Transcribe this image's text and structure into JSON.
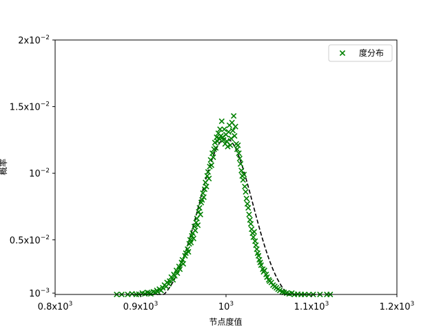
{
  "chart_data": {
    "type": "scatter",
    "xlabel": "节点度值",
    "ylabel": "概率",
    "xlim": [
      800,
      1200
    ],
    "ylim": [
      0.0009,
      0.02
    ],
    "grid": false,
    "legend": {
      "placement": "top-right",
      "entries": [
        "度分布"
      ]
    },
    "x_ticks": [
      {
        "value": 800,
        "mantissa": "0.8x10",
        "exp": "3"
      },
      {
        "value": 900,
        "mantissa": "0.9x10",
        "exp": "3"
      },
      {
        "value": 1000,
        "mantissa": "10",
        "exp": "3"
      },
      {
        "value": 1100,
        "mantissa": "1.1x10",
        "exp": "3"
      },
      {
        "value": 1200,
        "mantissa": "1.2x10",
        "exp": "3"
      }
    ],
    "y_ticks": [
      {
        "value": 0.001,
        "mantissa": "10",
        "exp": "−3"
      },
      {
        "value": 0.005,
        "mantissa": "0.5x10",
        "exp": "−2"
      },
      {
        "value": 0.01,
        "mantissa": "10",
        "exp": "−2"
      },
      {
        "value": 0.015,
        "mantissa": "1.5x10",
        "exp": "−2"
      },
      {
        "value": 0.02,
        "mantissa": "2x10",
        "exp": "−2"
      }
    ],
    "series": [
      {
        "name": "度分布",
        "marker": "x",
        "color": "#008000",
        "points": [
          [
            872,
            0.0009
          ],
          [
            878,
            0.00085
          ],
          [
            885,
            0.0009
          ],
          [
            890,
            0.00095
          ],
          [
            895,
            0.0009
          ],
          [
            898,
            0.00092
          ],
          [
            902,
            0.001
          ],
          [
            905,
            0.00095
          ],
          [
            908,
            0.00105
          ],
          [
            910,
            0.001
          ],
          [
            912,
            0.00095
          ],
          [
            915,
            0.0011
          ],
          [
            917,
            0.00105
          ],
          [
            919,
            0.0012
          ],
          [
            920,
            0.0011
          ],
          [
            922,
            0.0013
          ],
          [
            924,
            0.0012
          ],
          [
            926,
            0.0014
          ],
          [
            928,
            0.0016
          ],
          [
            930,
            0.0015
          ],
          [
            931,
            0.0018
          ],
          [
            933,
            0.0017
          ],
          [
            934,
            0.0019
          ],
          [
            936,
            0.0022
          ],
          [
            938,
            0.002
          ],
          [
            939,
            0.0024
          ],
          [
            940,
            0.0023
          ],
          [
            942,
            0.0027
          ],
          [
            943,
            0.0025
          ],
          [
            945,
            0.003
          ],
          [
            946,
            0.0028
          ],
          [
            948,
            0.0033
          ],
          [
            949,
            0.0035
          ],
          [
            950,
            0.0032
          ],
          [
            952,
            0.0038
          ],
          [
            953,
            0.004
          ],
          [
            955,
            0.0043
          ],
          [
            956,
            0.0041
          ],
          [
            957,
            0.0047
          ],
          [
            958,
            0.005
          ],
          [
            959,
            0.0048
          ],
          [
            960,
            0.0053
          ],
          [
            961,
            0.0055
          ],
          [
            962,
            0.0051
          ],
          [
            963,
            0.006
          ],
          [
            964,
            0.0057
          ],
          [
            965,
            0.0063
          ],
          [
            966,
            0.0066
          ],
          [
            967,
            0.0061
          ],
          [
            968,
            0.0071
          ],
          [
            969,
            0.0074
          ],
          [
            970,
            0.0069
          ],
          [
            971,
            0.0078
          ],
          [
            972,
            0.008
          ],
          [
            973,
            0.0085
          ],
          [
            974,
            0.0082
          ],
          [
            975,
            0.0088
          ],
          [
            976,
            0.0093
          ],
          [
            977,
            0.009
          ],
          [
            978,
            0.0098
          ],
          [
            979,
            0.0101
          ],
          [
            980,
            0.0096
          ],
          [
            981,
            0.0105
          ],
          [
            982,
            0.011
          ],
          [
            983,
            0.0106
          ],
          [
            984,
            0.0115
          ],
          [
            985,
            0.0112
          ],
          [
            986,
            0.0118
          ],
          [
            987,
            0.0123
          ],
          [
            988,
            0.0119
          ],
          [
            989,
            0.0127
          ],
          [
            990,
            0.0124
          ],
          [
            991,
            0.013
          ],
          [
            992,
            0.0126
          ],
          [
            993,
            0.0133
          ],
          [
            994,
            0.0128
          ],
          [
            995,
            0.0139
          ],
          [
            996,
            0.0127
          ],
          [
            997,
            0.0125
          ],
          [
            998,
            0.0133
          ],
          [
            999,
            0.0122
          ],
          [
            1000,
            0.0129
          ],
          [
            1001,
            0.0124
          ],
          [
            1002,
            0.012
          ],
          [
            1003,
            0.0131
          ],
          [
            1004,
            0.0136
          ],
          [
            1005,
            0.0121
          ],
          [
            1006,
            0.0126
          ],
          [
            1007,
            0.0138
          ],
          [
            1008,
            0.0132
          ],
          [
            1009,
            0.0143
          ],
          [
            1010,
            0.0128
          ],
          [
            1011,
            0.0135
          ],
          [
            1012,
            0.0122
          ],
          [
            1013,
            0.0118
          ],
          [
            1014,
            0.0121
          ],
          [
            1015,
            0.0115
          ],
          [
            1016,
            0.0111
          ],
          [
            1017,
            0.0107
          ],
          [
            1018,
            0.0102
          ],
          [
            1019,
            0.0098
          ],
          [
            1020,
            0.0095
          ],
          [
            1021,
            0.0099
          ],
          [
            1022,
            0.009
          ],
          [
            1023,
            0.0086
          ],
          [
            1024,
            0.0081
          ],
          [
            1025,
            0.0077
          ],
          [
            1026,
            0.0074
          ],
          [
            1027,
            0.0069
          ],
          [
            1028,
            0.0065
          ],
          [
            1029,
            0.0062
          ],
          [
            1030,
            0.0058
          ],
          [
            1031,
            0.0055
          ],
          [
            1032,
            0.0052
          ],
          [
            1033,
            0.0056
          ],
          [
            1034,
            0.0049
          ],
          [
            1035,
            0.0046
          ],
          [
            1036,
            0.0043
          ],
          [
            1037,
            0.004
          ],
          [
            1038,
            0.0038
          ],
          [
            1039,
            0.0035
          ],
          [
            1040,
            0.0033
          ],
          [
            1041,
            0.0031
          ],
          [
            1043,
            0.0028
          ],
          [
            1044,
            0.0026
          ],
          [
            1045,
            0.0027
          ],
          [
            1047,
            0.0024
          ],
          [
            1048,
            0.0022
          ],
          [
            1050,
            0.002
          ],
          [
            1051,
            0.0019
          ],
          [
            1053,
            0.0018
          ],
          [
            1055,
            0.0016
          ],
          [
            1057,
            0.0015
          ],
          [
            1059,
            0.0014
          ],
          [
            1061,
            0.0013
          ],
          [
            1063,
            0.0012
          ],
          [
            1066,
            0.0011
          ],
          [
            1068,
            0.00105
          ],
          [
            1071,
            0.001
          ],
          [
            1074,
            0.00095
          ],
          [
            1077,
            0.001
          ],
          [
            1080,
            0.0009
          ],
          [
            1084,
            0.00092
          ],
          [
            1088,
            0.0009
          ],
          [
            1092,
            0.00088
          ],
          [
            1097,
            0.0009
          ],
          [
            1102,
            0.00087
          ],
          [
            1110,
            0.0009
          ],
          [
            1118,
            0.00088
          ],
          [
            1122,
            0.0009
          ]
        ]
      },
      {
        "name": "",
        "style": "dashed-line",
        "color": "#000000",
        "fit": {
          "mean": 1000,
          "std": 31.6,
          "over": [
            890,
            1110
          ]
        }
      }
    ]
  }
}
